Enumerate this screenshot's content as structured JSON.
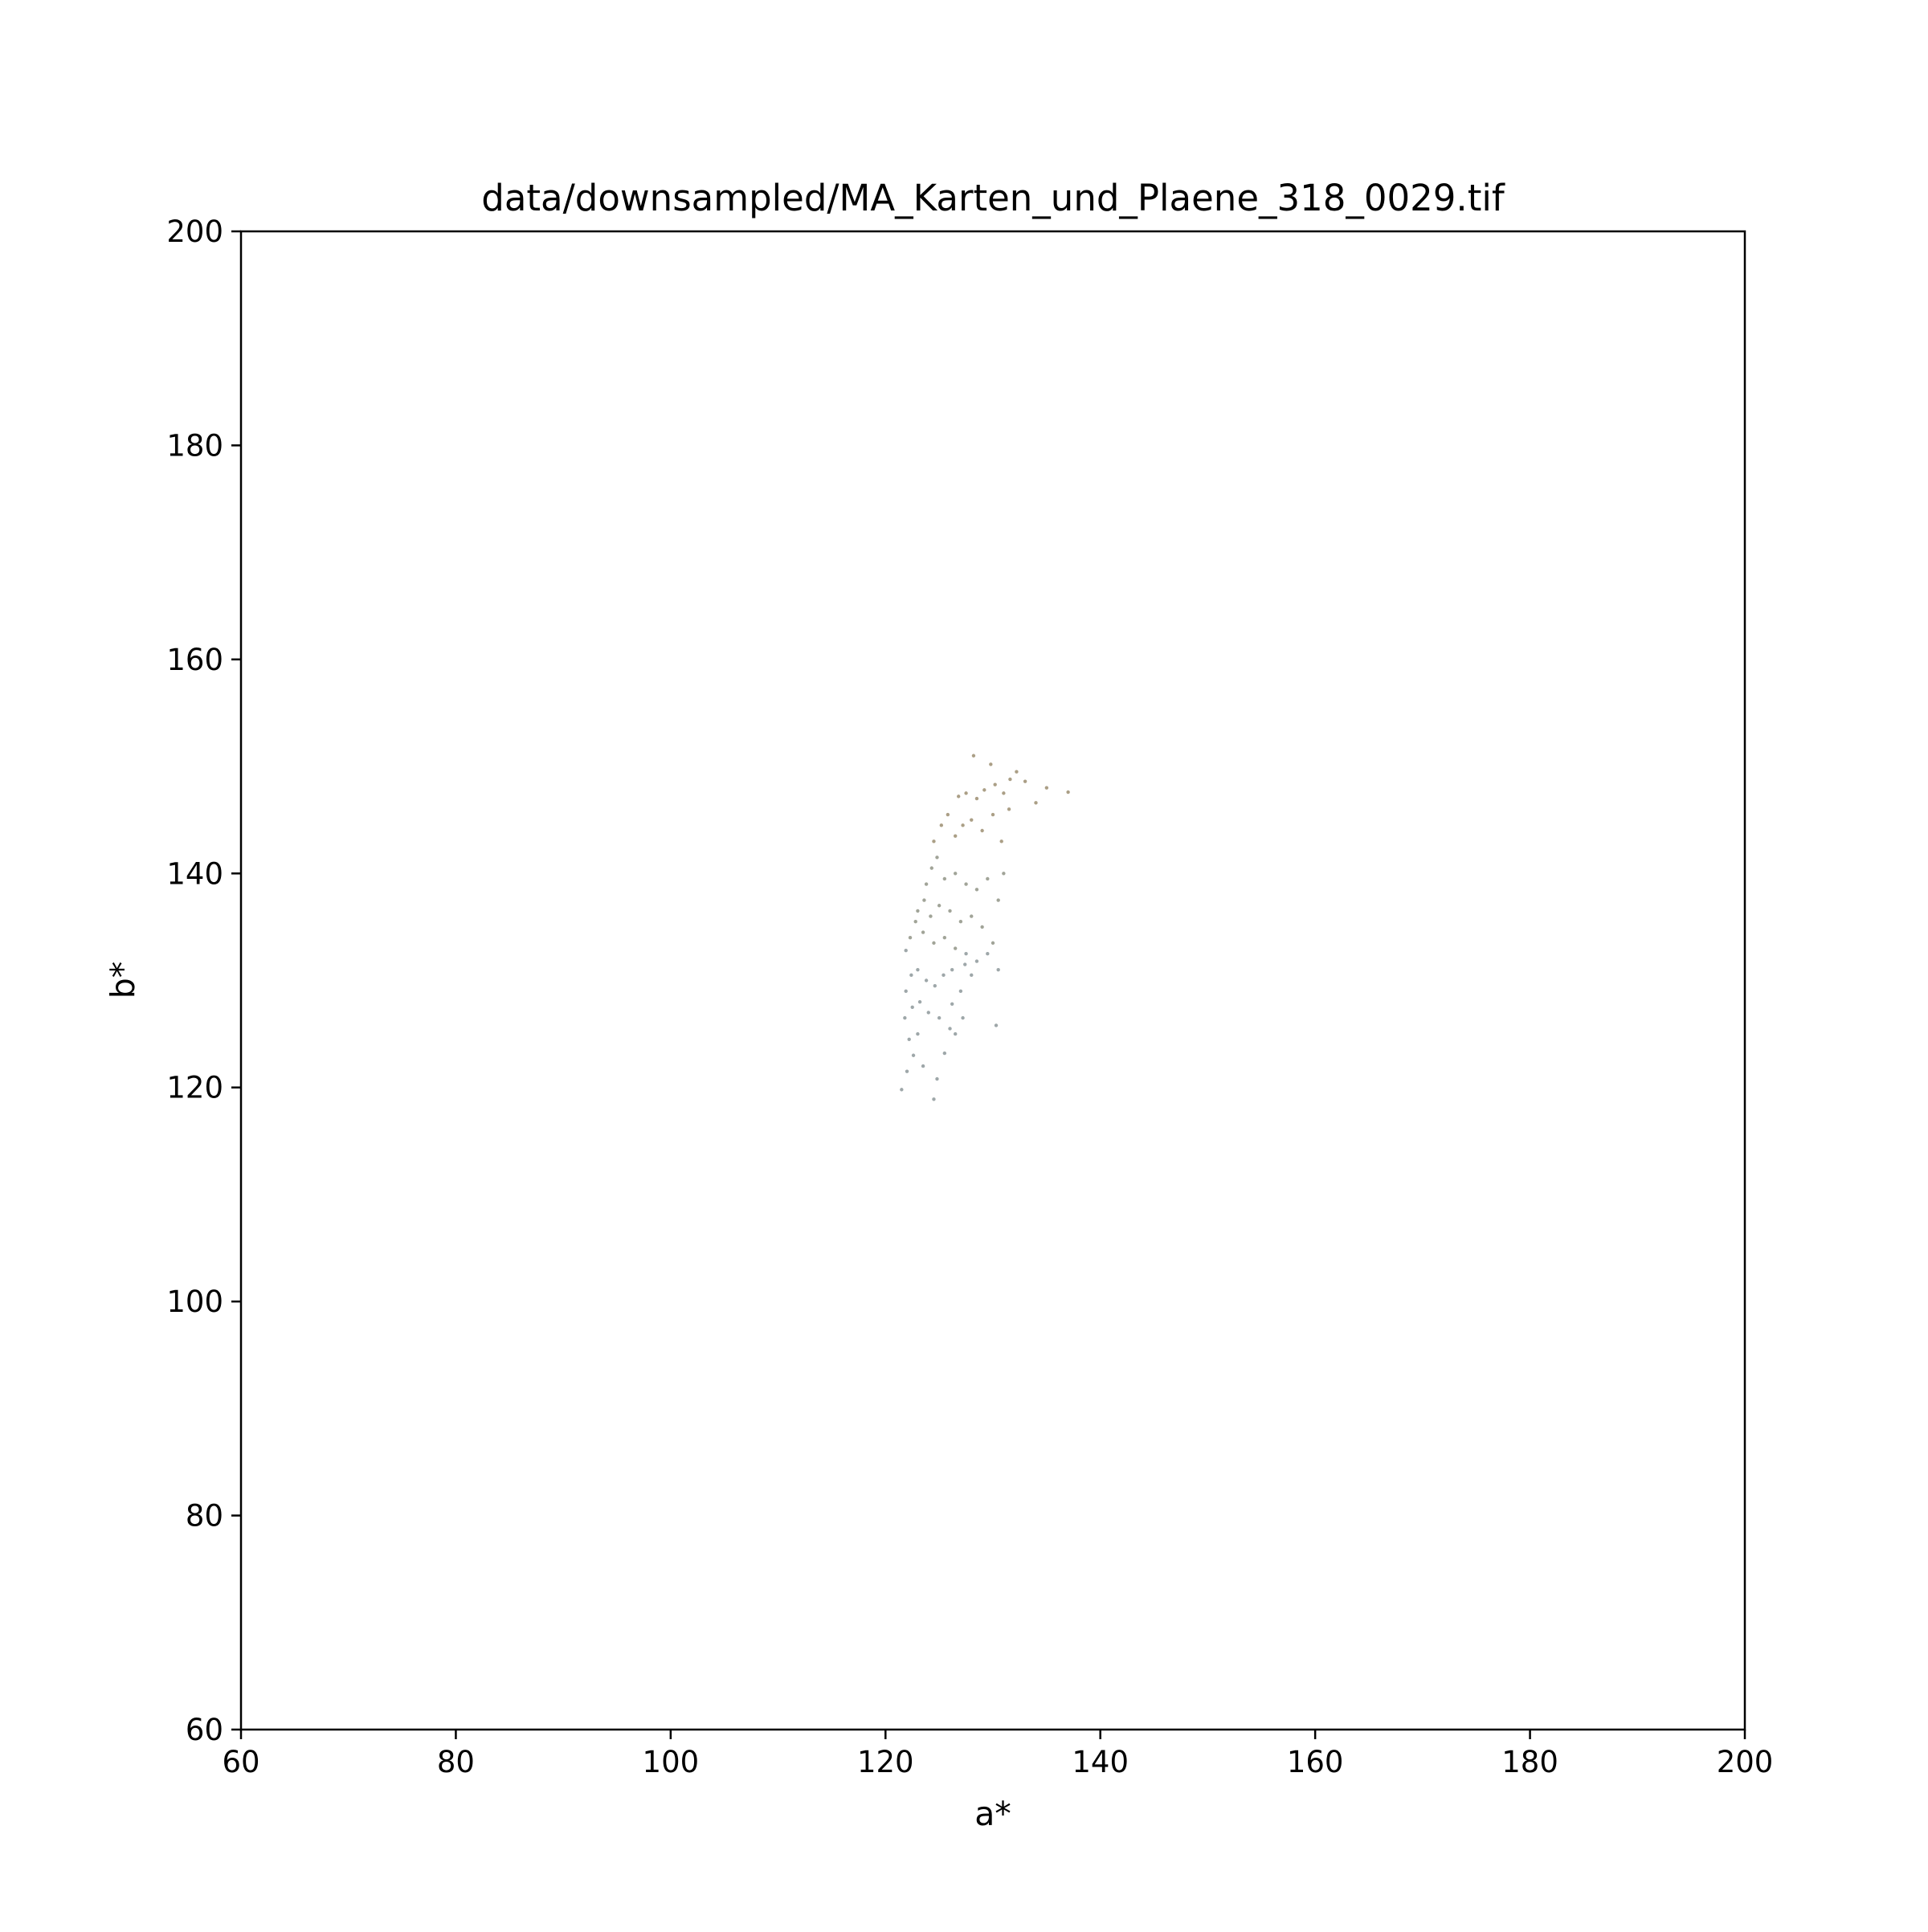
{
  "chart_data": {
    "type": "scatter",
    "title": "data/downsampled/MA_Karten_und_Plaene_318_0029.tif",
    "xlabel": "a*",
    "ylabel": "b*",
    "xlim": [
      60,
      200
    ],
    "ylim": [
      60,
      200
    ],
    "xticks": [
      60,
      80,
      100,
      120,
      140,
      160,
      180,
      200
    ],
    "yticks": [
      60,
      80,
      100,
      120,
      140,
      160,
      180,
      200
    ],
    "grid": false,
    "legend": "none",
    "point_colors": {
      "low_b": "#7d8a8c",
      "mid_b": "#828575",
      "high_b": "#8f7f5e"
    },
    "series": [
      {
        "points": [
          [
            121.5,
            119.8
          ],
          [
            122.0,
            121.5
          ],
          [
            122.6,
            123.0
          ],
          [
            122.2,
            124.5
          ],
          [
            123.0,
            125.0
          ],
          [
            123.5,
            122.0
          ],
          [
            124.5,
            118.9
          ],
          [
            124.8,
            120.8
          ],
          [
            125.5,
            123.2
          ],
          [
            126.0,
            125.5
          ],
          [
            121.8,
            126.5
          ],
          [
            122.5,
            127.5
          ],
          [
            123.2,
            128.0
          ],
          [
            124.0,
            127.0
          ],
          [
            125.0,
            126.5
          ],
          [
            126.2,
            127.8
          ],
          [
            127.0,
            129.0
          ],
          [
            126.5,
            125.0
          ],
          [
            127.2,
            126.5
          ],
          [
            121.9,
            129.0
          ],
          [
            122.4,
            130.5
          ],
          [
            123.0,
            131.0
          ],
          [
            123.8,
            130.0
          ],
          [
            124.6,
            129.5
          ],
          [
            125.4,
            130.5
          ],
          [
            126.2,
            131.0
          ],
          [
            127.4,
            131.5
          ],
          [
            128.0,
            130.5
          ],
          [
            121.9,
            132.8
          ],
          [
            122.3,
            134.0
          ],
          [
            122.8,
            135.5
          ],
          [
            123.5,
            134.5
          ],
          [
            124.5,
            133.5
          ],
          [
            125.5,
            134.0
          ],
          [
            126.5,
            133.0
          ],
          [
            127.5,
            132.5
          ],
          [
            128.5,
            131.8
          ],
          [
            129.5,
            132.5
          ],
          [
            123.0,
            136.5
          ],
          [
            123.6,
            137.5
          ],
          [
            124.2,
            136.0
          ],
          [
            125.0,
            137.0
          ],
          [
            126.0,
            136.5
          ],
          [
            127.0,
            135.5
          ],
          [
            128.0,
            136.0
          ],
          [
            129.0,
            135.0
          ],
          [
            130.0,
            133.5
          ],
          [
            130.5,
            131.0
          ],
          [
            123.8,
            139.0
          ],
          [
            124.3,
            140.5
          ],
          [
            124.8,
            141.5
          ],
          [
            125.5,
            139.5
          ],
          [
            126.5,
            140.0
          ],
          [
            127.5,
            139.0
          ],
          [
            128.5,
            138.5
          ],
          [
            129.5,
            139.5
          ],
          [
            130.5,
            137.5
          ],
          [
            131.0,
            140.0
          ],
          [
            124.5,
            143.0
          ],
          [
            125.2,
            144.5
          ],
          [
            125.8,
            145.5
          ],
          [
            126.5,
            143.5
          ],
          [
            127.2,
            144.5
          ],
          [
            128.0,
            145.0
          ],
          [
            129.0,
            144.0
          ],
          [
            130.0,
            145.5
          ],
          [
            130.8,
            143.0
          ],
          [
            131.5,
            146.0
          ],
          [
            126.8,
            147.2
          ],
          [
            127.5,
            147.5
          ],
          [
            128.5,
            147.0
          ],
          [
            129.2,
            147.8
          ],
          [
            130.2,
            148.3
          ],
          [
            131.0,
            147.5
          ],
          [
            131.6,
            148.8
          ],
          [
            129.8,
            150.2
          ],
          [
            128.2,
            151.0
          ],
          [
            132.2,
            149.5
          ],
          [
            133.0,
            148.6
          ],
          [
            134.0,
            146.6
          ],
          [
            135.0,
            148.0
          ],
          [
            137.0,
            147.6
          ],
          [
            130.3,
            125.8
          ]
        ]
      }
    ]
  }
}
